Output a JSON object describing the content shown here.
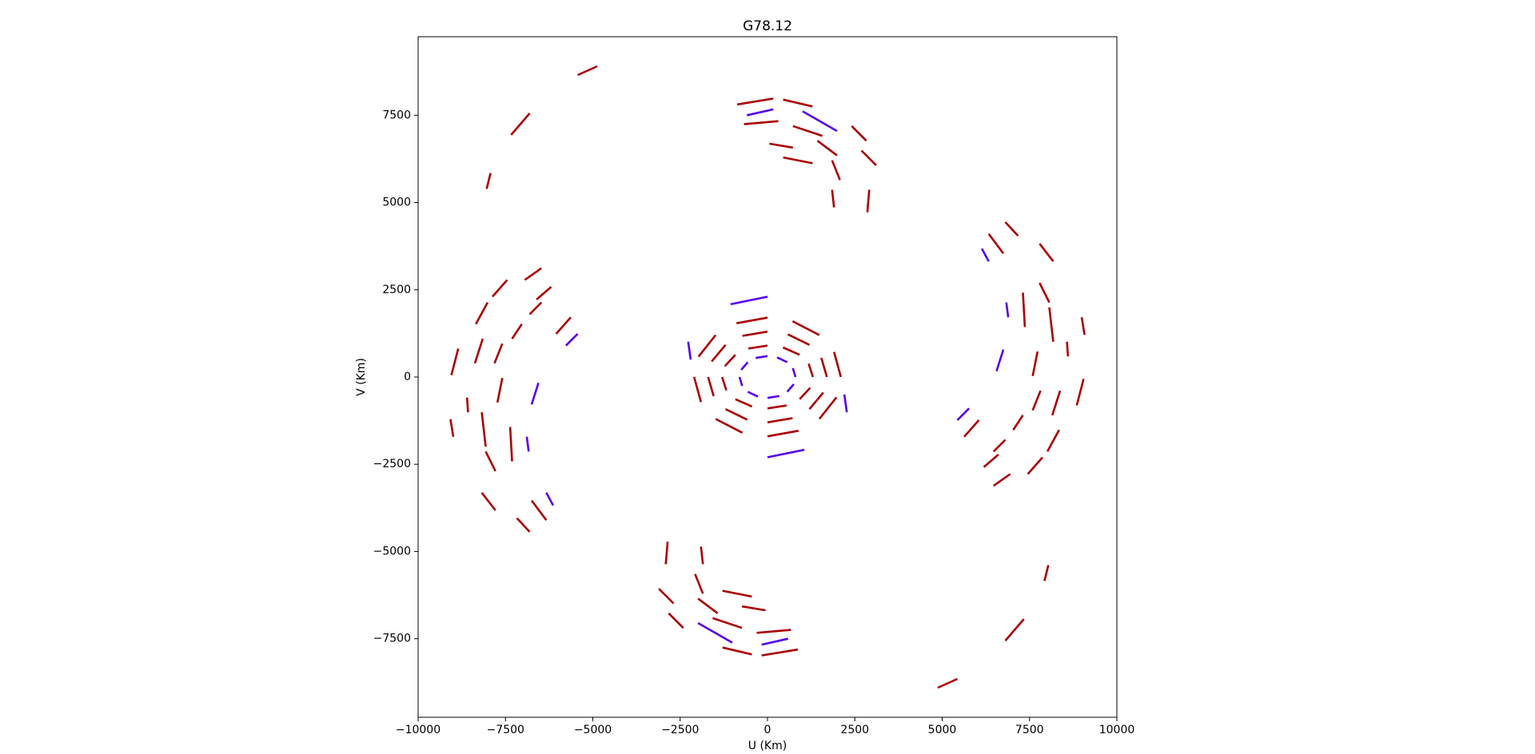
{
  "chart_data": {
    "type": "line",
    "title": "G78.12",
    "xlabel": "U (Km)",
    "ylabel": "V (Km)",
    "xlim": [
      -10000,
      10000
    ],
    "ylim": [
      -9750,
      9750
    ],
    "xticks": [
      {
        "value": -10000,
        "label": "−10000"
      },
      {
        "value": -7500,
        "label": "−7500"
      },
      {
        "value": -5000,
        "label": "−5000"
      },
      {
        "value": -2500,
        "label": "−2500"
      },
      0,
      2500,
      5000,
      7500,
      10000
    ],
    "yticks": [
      {
        "value": -7500,
        "label": "−7500"
      },
      {
        "value": -5000,
        "label": "−5000"
      },
      {
        "value": -2500,
        "label": "−2500"
      },
      0,
      2500,
      5000,
      7500
    ],
    "series": [
      {
        "color": "#aa0000",
        "x": [
          -868,
          168,
          null,
          448,
          1289,
          null,
          -672,
          308,
          null,
          728,
          1569,
          null,
          1429,
          1989,
          null,
          1849,
          2073,
          null,
          1849,
          1905,
          null,
          2409,
          2829,
          null,
          2689,
          3109,
          null,
          2913,
          2857,
          null,
          56,
          728,
          null,
          448,
          1289,
          null,
          6807,
          7171,
          null,
          6331,
          6751,
          null,
          7787,
          8179,
          null,
          7787,
          8067,
          null,
          7311,
          7367,
          null,
          8067,
          8179,
          null,
          8571,
          8599,
          null,
          8992,
          9076,
          null,
          7731,
          7591,
          null,
          9048,
          8852,
          null,
          8375,
          8151,
          null,
          7815,
          7591,
          null,
          7311,
          7031,
          null,
          8347,
          8011,
          null,
          6807,
          6471,
          null,
          6611,
          6191,
          null,
          7871,
          7451,
          null,
          6947,
          6471,
          null,
          6051,
          5630,
          null,
          -5434,
          -4874,
          null,
          -7339,
          -6807,
          null,
          -8039,
          -7927,
          null,
          868,
          -168,
          null,
          -448,
          -1289,
          null,
          672,
          -308,
          null,
          -728,
          -1569,
          null,
          -1429,
          -1989,
          null,
          -1849,
          -2073,
          null,
          -1849,
          -1905,
          null,
          -2409,
          -2829,
          null,
          -2689,
          -3109,
          null,
          -2913,
          -2857,
          null,
          -56,
          -728,
          null,
          -448,
          -1289,
          null,
          -6807,
          -7171,
          null,
          -6331,
          -6751,
          null,
          -7787,
          -8179,
          null,
          -7787,
          -8067,
          null,
          -7311,
          -7367,
          null,
          -8067,
          -8179,
          null,
          -8571,
          -8599,
          null,
          -8992,
          -9076,
          null,
          -7731,
          -7591,
          null,
          -9048,
          -8852,
          null,
          -8375,
          -8151,
          null,
          -7815,
          -7591,
          null,
          -7311,
          -7031,
          null,
          -8347,
          -8011,
          null,
          -6807,
          -6471,
          null,
          -6611,
          -6191,
          null,
          -7871,
          -7451,
          null,
          -6947,
          -6471,
          null,
          -6051,
          -5630,
          null,
          5434,
          4874,
          null,
          7339,
          6807,
          null,
          8039,
          7927,
          null,
          1300,
          1178,
          null,
          919,
          445,
          null,
          0,
          -550,
          null,
          -919,
          -1222,
          null,
          -1300,
          -1178,
          null,
          -919,
          -445,
          null,
          0,
          550,
          null,
          919,
          1222,
          null,
          1700,
          1540,
          null,
          1202,
          581,
          null,
          0,
          -719,
          null,
          -1202,
          -1598,
          null,
          -1700,
          -1540,
          null,
          -1202,
          -581,
          null,
          0,
          719,
          null,
          1202,
          1598,
          null,
          2100,
          1903,
          null,
          1485,
          718,
          null,
          0,
          -888,
          null,
          -1485,
          -1974,
          null,
          -2100,
          -1903,
          null,
          -1485,
          -718,
          null,
          0,
          888,
          null,
          1485,
          1974
        ],
        "y": [
          7809,
          7978,
          null,
          7949,
          7753,
          null,
          7247,
          7331,
          null,
          7191,
          6910,
          null,
          6770,
          6348,
          null,
          6208,
          5646,
          null,
          5365,
          4860,
          null,
          7191,
          6770,
          null,
          6489,
          6067,
          null,
          5365,
          4719,
          null,
          6685,
          6573,
          null,
          6292,
          6124,
          null,
          4438,
          4045,
          null,
          4101,
          3539,
          null,
          3820,
          3315,
          null,
          2697,
          2135,
          null,
          2416,
          1433,
          null,
          1994,
          1011,
          null,
          1011,
          590,
          null,
          1713,
          1208,
          null,
          730,
          28,
          null,
          -56,
          -815,
          null,
          -393,
          -1096,
          null,
          -393,
          -955,
          null,
          -1096,
          -1517,
          null,
          -1517,
          -2135,
          null,
          -1798,
          -2135,
          null,
          -2219,
          -2584,
          null,
          -2303,
          -2781,
          null,
          -2781,
          -3118,
          null,
          -1236,
          -1713,
          null,
          8652,
          8904,
          null,
          6938,
          7556,
          null,
          5393,
          5843,
          null,
          -7809,
          -7978,
          null,
          -7949,
          -7753,
          null,
          -7247,
          -7331,
          null,
          -7191,
          -6910,
          null,
          -6770,
          -6348,
          null,
          -6208,
          -5646,
          null,
          -5365,
          -4860,
          null,
          -7191,
          -6770,
          null,
          -6489,
          -6067,
          null,
          -5365,
          -4719,
          null,
          -6685,
          -6573,
          null,
          -6292,
          -6124,
          null,
          -4438,
          -4045,
          null,
          -4101,
          -3539,
          null,
          -3820,
          -3315,
          null,
          -2697,
          -2135,
          null,
          -2416,
          -1433,
          null,
          -1994,
          -1011,
          null,
          -1011,
          -590,
          null,
          -1713,
          -1208,
          null,
          -730,
          -28,
          null,
          56,
          815,
          null,
          393,
          1096,
          null,
          393,
          955,
          null,
          1096,
          1517,
          null,
          1517,
          2135,
          null,
          1798,
          2135,
          null,
          2219,
          2584,
          null,
          2303,
          2781,
          null,
          2781,
          3118,
          null,
          1236,
          1713,
          null,
          -8652,
          -8904,
          null,
          -6938,
          -7556,
          null,
          -5393,
          -5843,
          null,
          0,
          381,
          null,
          636,
          846,
          null,
          900,
          815,
          null,
          636,
          308,
          null,
          0,
          -381,
          null,
          -636,
          -846,
          null,
          -900,
          -815,
          null,
          -636,
          -308,
          null,
          0,
          550,
          null,
          919,
          1222,
          null,
          1300,
          1178,
          null,
          919,
          445,
          null,
          0,
          -550,
          null,
          -919,
          -1222,
          null,
          -1300,
          -1178,
          null,
          -919,
          -445,
          null,
          0,
          719,
          null,
          1202,
          1598,
          null,
          1700,
          1540,
          null,
          1202,
          581,
          null,
          0,
          -719,
          null,
          -1202,
          -1598,
          null,
          -1700,
          -1540,
          null,
          -1202,
          -581
        ]
      },
      {
        "color": "#5500ee",
        "x": [
          -588,
          168,
          null,
          1008,
          1989,
          null,
          588,
          -168,
          null,
          -1008,
          -1989,
          null,
          6135,
          6331,
          null,
          6835,
          6891,
          null,
          6751,
          6555,
          null,
          5770,
          5434,
          null,
          -6135,
          -6331,
          null,
          -6835,
          -6891,
          null,
          -6751,
          -6555,
          null,
          -5770,
          -5434,
          null,
          800,
          725,
          null,
          566,
          274,
          null,
          0,
          -338,
          null,
          -566,
          -752,
          null,
          -800,
          -725,
          null,
          -566,
          -274,
          null,
          0,
          338,
          null,
          566,
          752,
          null,
          0,
          -1058,
          null,
          0,
          1058,
          null,
          -2269,
          -2200,
          null,
          2269,
          2200
        ],
        "y": [
          7500,
          7669,
          null,
          7612,
          7050,
          null,
          -7500,
          -7669,
          null,
          -7612,
          -7050,
          null,
          3680,
          3315,
          null,
          2135,
          1713,
          null,
          787,
          169,
          null,
          -899,
          -1236,
          null,
          -3680,
          -3315,
          null,
          -2135,
          -1713,
          null,
          -787,
          -169,
          null,
          899,
          1236,
          null,
          0,
          254,
          null,
          424,
          564,
          null,
          600,
          544,
          null,
          424,
          205,
          null,
          0,
          -254,
          null,
          -424,
          -564,
          null,
          -600,
          -544,
          null,
          -424,
          -205,
          null,
          2300,
          2084,
          null,
          -2300,
          -2084,
          null,
          1011,
          500,
          null,
          -1011,
          -500
        ]
      }
    ]
  }
}
